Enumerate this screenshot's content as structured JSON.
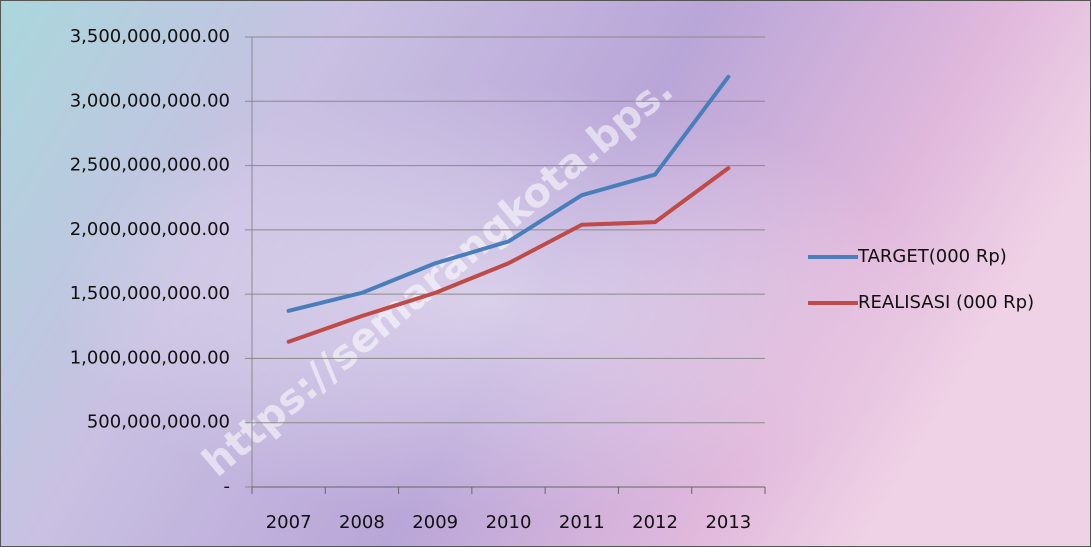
{
  "chart_data": {
    "type": "line",
    "watermark": "https://semarangkota.bps.",
    "categories": [
      "2007",
      "2008",
      "2009",
      "2010",
      "2011",
      "2012",
      "2013"
    ],
    "series": [
      {
        "name": "TARGET(000 Rp)",
        "color": "#4a7ebb",
        "values": [
          1370000000,
          1510000000,
          1740000000,
          1910000000,
          2270000000,
          2430000000,
          3190000000
        ]
      },
      {
        "name": "REALISASI (000 Rp)",
        "color": "#be4b48",
        "values": [
          1130000000,
          1330000000,
          1510000000,
          1740000000,
          2040000000,
          2060000000,
          2480000000
        ]
      }
    ],
    "ylim": [
      0,
      3500000000
    ],
    "yticks": [
      {
        "value": 0,
        "label": "-"
      },
      {
        "value": 500000000,
        "label": "500,000,000.00"
      },
      {
        "value": 1000000000,
        "label": "1,000,000,000.00"
      },
      {
        "value": 1500000000,
        "label": "1,500,000,000.00"
      },
      {
        "value": 2000000000,
        "label": "2,000,000,000.00"
      },
      {
        "value": 2500000000,
        "label": "2,500,000,000.00"
      },
      {
        "value": 3000000000,
        "label": "3,000,000,000.00"
      },
      {
        "value": 3500000000,
        "label": "3,500,000,000.00"
      }
    ],
    "grid": true,
    "legend": "right"
  }
}
